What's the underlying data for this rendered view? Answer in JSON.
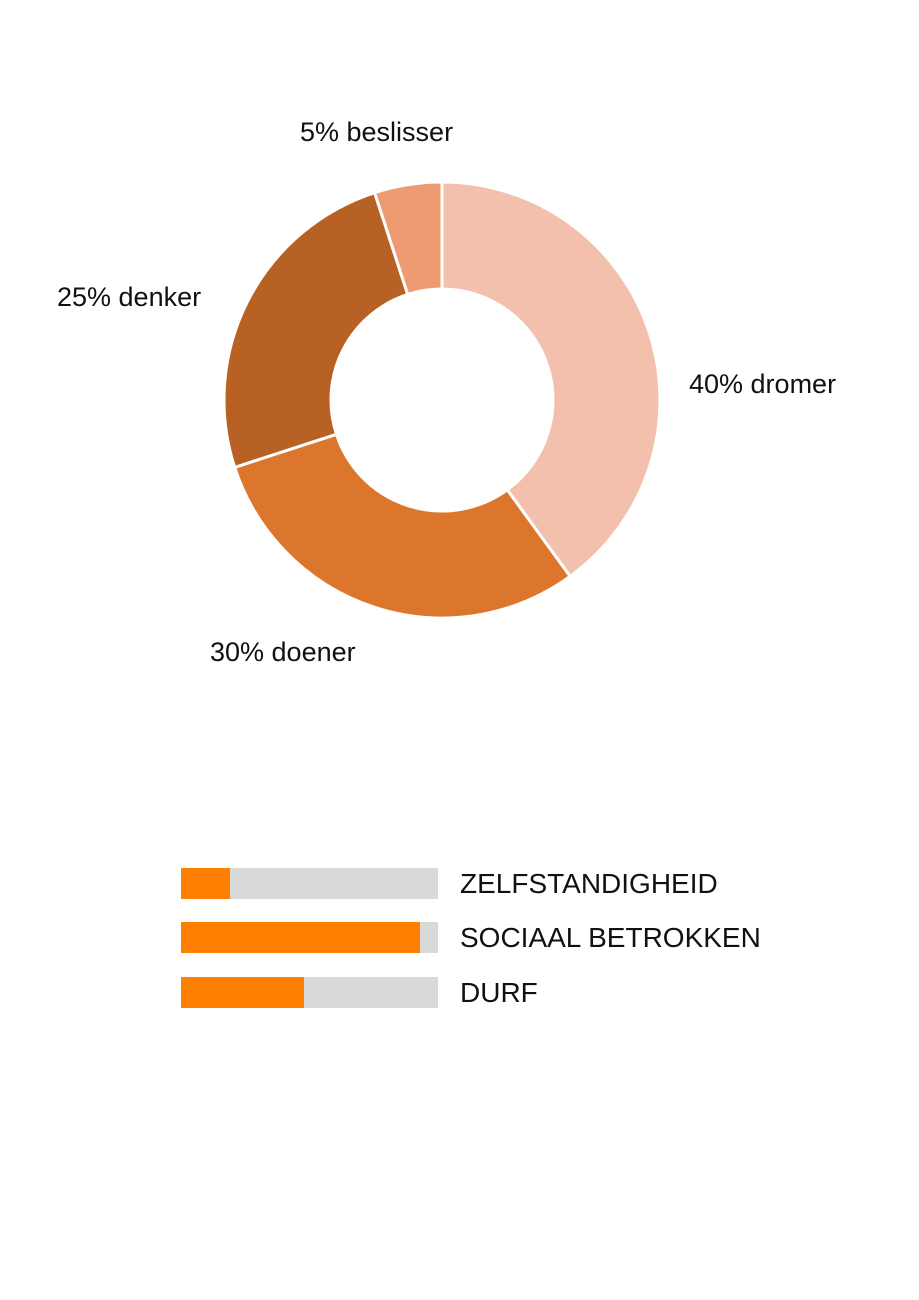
{
  "chart_data": [
    {
      "type": "pie",
      "subtype": "donut",
      "title": "",
      "categories": [
        "dromer",
        "doener",
        "denker",
        "beslisser"
      ],
      "values": [
        40,
        30,
        25,
        5
      ],
      "unit": "%",
      "labels": [
        "40% dromer",
        "30% doener",
        "25% denker",
        "5% beslisser"
      ],
      "colors": [
        "#F4C0AE",
        "#DD762D",
        "#B86125",
        "#EE9A73"
      ],
      "start_angle": "12 o'clock, clockwise",
      "legend": "none (inline labels)"
    },
    {
      "type": "bar",
      "orientation": "horizontal",
      "title": "",
      "categories": [
        "ZELFSTANDIGHEID",
        "SOCIAAL BETROKKEN",
        "DURF"
      ],
      "values": [
        19,
        93,
        48
      ],
      "xlim": [
        0,
        100
      ],
      "fill_color": "#FF7F00",
      "track_color": "#D9D9D9",
      "axis": "none",
      "grid": false
    }
  ],
  "donut": {
    "labels": {
      "dromer": "40% dromer",
      "doener": "30% doener",
      "denker": "25% denker",
      "beslisser": "5% beslisser"
    }
  },
  "bars": [
    {
      "label": "ZELFSTANDIGHEID",
      "value": 19
    },
    {
      "label": "SOCIAAL BETROKKEN",
      "value": 93
    },
    {
      "label": "DURF",
      "value": 48
    }
  ]
}
